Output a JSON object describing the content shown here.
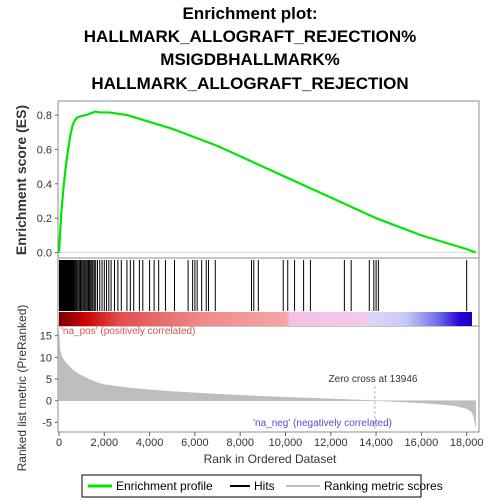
{
  "title_lines": [
    "Enrichment plot:",
    "HALLMARK_ALLOGRAFT_REJECTION%",
    "MSIGDBHALLMARK%",
    "HALLMARK_ALLOGRAFT_REJECTION"
  ],
  "colors": {
    "enrichment_line": "#00e600",
    "hits": "#000000",
    "metric_fill": "#bebebe",
    "zero_cross_line": "#b4b4b4",
    "pos_label": "#e05050",
    "neg_label": "#5050d0",
    "frame": "#8c8c8c"
  },
  "labels": {
    "es_ylabel": "Enrichment score (ES)",
    "metric_ylabel": "Ranked list metric (PreRanked)",
    "xlabel": "Rank in Ordered Dataset",
    "pos_corr": "'na_pos' (positively correlated)",
    "neg_corr": "'na_neg' (negatively correlated)",
    "zero_cross": "Zero cross at 13946"
  },
  "legend": [
    {
      "label": "Enrichment profile",
      "icon": "green-line-icon"
    },
    {
      "label": "Hits",
      "icon": "black-tick-icon"
    },
    {
      "label": "Ranking metric scores",
      "icon": "gray-line-icon"
    }
  ],
  "chart_data": {
    "type": "line",
    "x_range": [
      0,
      18500
    ],
    "x_ticks": [
      0,
      2000,
      4000,
      6000,
      8000,
      10000,
      12000,
      14000,
      16000,
      18000
    ],
    "x_tick_labels": [
      "0",
      "2,000",
      "4,000",
      "6,000",
      "8,000",
      "10,000",
      "12,000",
      "14,000",
      "16,000",
      "18,000"
    ],
    "es_range": [
      -0.02,
      0.87
    ],
    "es_ticks": [
      0.0,
      0.2,
      0.4,
      0.6,
      0.8
    ],
    "es_tick_labels": [
      "0.0",
      "0.2",
      "0.4",
      "0.6",
      "0.8"
    ],
    "metric_range": [
      -7,
      17
    ],
    "metric_ticks": [
      -5,
      0,
      5,
      10,
      15
    ],
    "metric_tick_labels": [
      "-5",
      "0",
      "5",
      "10",
      "15"
    ],
    "zero_cross_rank": 13946,
    "enrichment_profile": {
      "x": [
        0,
        100,
        200,
        300,
        400,
        500,
        600,
        700,
        800,
        900,
        1000,
        1200,
        1400,
        1600,
        1800,
        2000,
        2200,
        2500,
        3000,
        3500,
        4000,
        5000,
        6000,
        7000,
        8000,
        9000,
        10000,
        11000,
        12000,
        13000,
        14000,
        15000,
        16000,
        17000,
        18000,
        18400
      ],
      "y": [
        0.0,
        0.23,
        0.38,
        0.5,
        0.6,
        0.68,
        0.74,
        0.77,
        0.785,
        0.79,
        0.795,
        0.8,
        0.81,
        0.82,
        0.815,
        0.815,
        0.815,
        0.81,
        0.8,
        0.78,
        0.76,
        0.72,
        0.67,
        0.62,
        0.56,
        0.5,
        0.44,
        0.38,
        0.32,
        0.26,
        0.2,
        0.15,
        0.1,
        0.06,
        0.02,
        0.0
      ]
    },
    "hits": [
      20,
      45,
      70,
      95,
      120,
      150,
      180,
      210,
      240,
      270,
      300,
      330,
      360,
      390,
      420,
      450,
      480,
      510,
      540,
      570,
      600,
      640,
      680,
      720,
      760,
      800,
      850,
      900,
      950,
      1000,
      1050,
      1100,
      1150,
      1200,
      1250,
      1300,
      1350,
      1400,
      1450,
      1500,
      1560,
      1620,
      1700,
      1800,
      1900,
      2000,
      2100,
      2200,
      2300,
      2450,
      2600,
      2750,
      3000,
      3150,
      3300,
      3550,
      3700,
      4000,
      4200,
      4400,
      4700,
      5100,
      5700,
      5900,
      6000,
      6100,
      6300,
      6500,
      6600,
      6900,
      8500,
      8600,
      8800,
      9900,
      10100,
      10400,
      10800,
      11100,
      12600,
      12900,
      13700,
      13900,
      14000,
      14100,
      18000
    ],
    "ranking_metric": {
      "x": [
        0,
        50,
        100,
        200,
        400,
        600,
        800,
        1000,
        1500,
        2000,
        3000,
        4000,
        5000,
        6000,
        7000,
        8000,
        9000,
        10000,
        11000,
        12000,
        13000,
        13946,
        15000,
        16000,
        17000,
        17500,
        18000,
        18200,
        18300,
        18400
      ],
      "y": [
        15.5,
        11.5,
        10.5,
        9.5,
        8.2,
        7.2,
        6.4,
        5.8,
        4.5,
        3.7,
        3.0,
        2.5,
        2.1,
        1.8,
        1.5,
        1.25,
        1.0,
        0.8,
        0.6,
        0.4,
        0.2,
        0.0,
        -0.25,
        -0.5,
        -0.9,
        -1.2,
        -1.8,
        -2.5,
        -3.5,
        -6.0
      ]
    }
  }
}
